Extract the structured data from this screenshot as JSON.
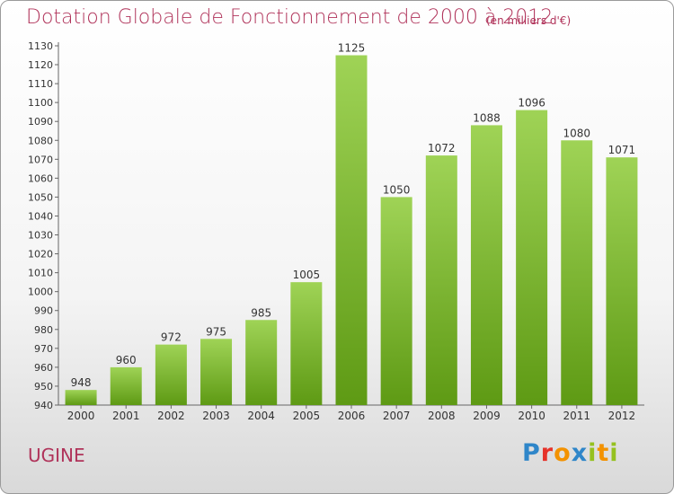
{
  "title": "Dotation Globale de Fonctionnement de 2000 à 2012",
  "subtitle": "(en milliers d'€)",
  "city": "UGINE",
  "logo": {
    "text": "Proxiti",
    "letters": [
      {
        "ch": "P",
        "color": "#2f86c9"
      },
      {
        "ch": "r",
        "color": "#e6332a"
      },
      {
        "ch": "o",
        "color": "#f39200"
      },
      {
        "ch": "x",
        "color": "#2f86c9"
      },
      {
        "ch": "i",
        "color": "#95c11f"
      },
      {
        "ch": "t",
        "color": "#f39200"
      },
      {
        "ch": "i",
        "color": "#95c11f"
      }
    ]
  },
  "colors": {
    "title": "#b0335a",
    "bar_top": "#9fd356",
    "bar_bottom": "#5e9a14",
    "axis": "#666666"
  },
  "chart_data": {
    "type": "bar",
    "categories": [
      "2000",
      "2001",
      "2002",
      "2003",
      "2004",
      "2005",
      "2006",
      "2007",
      "2008",
      "2009",
      "2010",
      "2011",
      "2012"
    ],
    "values": [
      948,
      960,
      972,
      975,
      985,
      1005,
      1125,
      1050,
      1072,
      1088,
      1096,
      1080,
      1071
    ],
    "ylim": [
      940,
      1130
    ],
    "yticks": [
      940,
      950,
      960,
      970,
      980,
      990,
      1000,
      1010,
      1020,
      1030,
      1040,
      1050,
      1060,
      1070,
      1080,
      1090,
      1100,
      1110,
      1120,
      1130
    ],
    "grid": false
  }
}
